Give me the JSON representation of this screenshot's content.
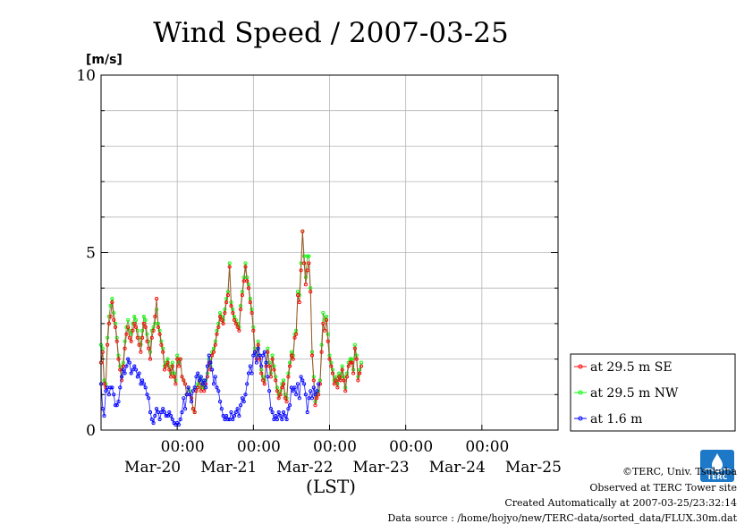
{
  "chart_data": {
    "type": "line",
    "title": "Wind Speed / 2007-03-25",
    "unit_label": "[m/s]",
    "xlabel": "(LST)",
    "ylim": [
      0,
      10
    ],
    "y_ticks": [
      "0",
      "5",
      "10"
    ],
    "time_ticks": [
      "00:00",
      "00:00",
      "00:00",
      "00:00",
      "00:00"
    ],
    "date_ticks": [
      "Mar-20",
      "Mar-21",
      "Mar-22",
      "Mar-23",
      "Mar-24",
      "Mar-25"
    ],
    "x_start": "2007-03-19T00:00",
    "x_end": "2007-03-25T00:00",
    "sample_interval": "30 min",
    "data_start": "2007-03-19T00:00",
    "legend_position": "right",
    "grid": true,
    "series": [
      {
        "name": "at 29.5 m SE",
        "color": "#ff0000",
        "line_color": "#a0522d",
        "values": [
          1.9,
          2.2,
          1.3,
          1.2,
          2.4,
          3.0,
          3.2,
          3.6,
          3.1,
          2.9,
          2.5,
          2.0,
          1.7,
          1.4,
          1.8,
          2.3,
          2.7,
          2.9,
          2.6,
          2.5,
          2.8,
          3.0,
          2.9,
          2.6,
          2.4,
          2.2,
          2.6,
          3.0,
          2.9,
          2.5,
          2.3,
          2.0,
          2.6,
          2.8,
          3.2,
          3.7,
          2.9,
          2.7,
          2.4,
          2.2,
          1.7,
          1.8,
          1.9,
          1.7,
          1.5,
          1.8,
          1.5,
          1.3,
          2.0,
          1.8,
          2.0,
          1.5,
          1.4,
          1.3,
          1.0,
          1.2,
          1.0,
          0.9,
          0.6,
          0.5,
          1.1,
          1.2,
          1.4,
          1.1,
          1.3,
          1.1,
          1.3,
          1.5,
          1.9,
          1.7,
          2.1,
          2.2,
          2.4,
          2.7,
          2.9,
          3.2,
          3.1,
          3.0,
          3.3,
          3.6,
          3.8,
          4.6,
          3.5,
          3.3,
          3.1,
          3.0,
          2.9,
          2.8,
          3.4,
          3.8,
          4.2,
          4.6,
          4.2,
          4.0,
          3.6,
          3.3,
          2.8,
          2.2,
          2.0,
          2.4,
          2.0,
          1.6,
          1.4,
          1.3,
          1.8,
          2.2,
          1.8,
          1.5,
          2.0,
          1.7,
          1.4,
          1.1,
          0.9,
          1.0,
          1.2,
          1.3,
          0.9,
          0.8,
          1.5,
          1.8,
          2.1,
          2.0,
          2.6,
          2.7,
          3.8,
          3.6,
          4.5,
          5.6,
          4.7,
          4.1,
          4.5,
          4.7,
          3.9,
          2.1,
          1.4,
          0.7,
          0.9,
          1.0,
          1.3,
          2.2,
          3.0,
          2.8,
          3.1,
          2.5,
          2.0,
          1.8,
          1.6,
          1.3,
          1.4,
          1.2,
          1.5,
          1.4,
          1.7,
          1.4,
          1.1,
          1.5,
          1.8,
          1.9,
          1.9,
          1.6,
          2.3,
          2.0,
          1.4,
          1.6,
          1.8
        ]
      },
      {
        "name": "at 29.5 m NW",
        "color": "#00ff00",
        "line_color": "#6a9e3a",
        "values": [
          2.4,
          2.3,
          1.4,
          1.3,
          2.6,
          3.2,
          3.5,
          3.7,
          3.3,
          3.0,
          2.6,
          2.1,
          1.8,
          1.5,
          1.9,
          2.5,
          2.9,
          3.1,
          2.8,
          2.7,
          3.0,
          3.2,
          3.1,
          2.8,
          2.6,
          2.4,
          2.8,
          3.2,
          3.1,
          2.7,
          2.5,
          2.2,
          2.8,
          2.9,
          3.0,
          3.4,
          3.0,
          2.8,
          2.5,
          2.3,
          1.8,
          1.9,
          2.0,
          1.8,
          1.6,
          1.9,
          1.6,
          1.4,
          2.1,
          1.9,
          2.0,
          1.5,
          1.4,
          1.3,
          1.0,
          1.2,
          1.1,
          0.9,
          0.6,
          0.5,
          1.2,
          1.3,
          1.5,
          1.2,
          1.4,
          1.2,
          1.4,
          1.6,
          2.0,
          1.8,
          2.2,
          2.3,
          2.5,
          2.8,
          3.0,
          3.3,
          3.2,
          3.1,
          3.4,
          3.7,
          3.9,
          4.7,
          3.6,
          3.4,
          3.2,
          3.1,
          3.0,
          2.9,
          3.5,
          3.9,
          4.3,
          4.7,
          4.3,
          4.1,
          3.7,
          3.4,
          2.9,
          2.3,
          2.1,
          2.5,
          2.1,
          1.7,
          1.5,
          1.4,
          1.9,
          2.3,
          1.9,
          1.6,
          2.1,
          1.8,
          1.5,
          1.2,
          1.0,
          1.1,
          1.3,
          1.4,
          1.0,
          0.9,
          1.6,
          1.9,
          2.2,
          2.1,
          2.7,
          2.8,
          3.9,
          3.8,
          4.7,
          5.6,
          4.9,
          4.3,
          4.9,
          4.9,
          4.0,
          2.2,
          1.5,
          0.8,
          1.0,
          1.1,
          1.4,
          2.4,
          3.3,
          3.1,
          3.2,
          2.7,
          2.1,
          1.9,
          1.7,
          1.4,
          1.5,
          1.3,
          1.6,
          1.5,
          1.8,
          1.5,
          1.2,
          1.6,
          1.9,
          2.0,
          2.0,
          1.7,
          2.4,
          2.1,
          1.5,
          1.7,
          1.9
        ]
      },
      {
        "name": "at 1.6 m",
        "color": "#0000ff",
        "line_color": "#3030ff",
        "values": [
          1.3,
          0.6,
          0.4,
          1.1,
          1.2,
          1.0,
          1.2,
          1.2,
          1.0,
          0.7,
          0.7,
          0.8,
          1.2,
          1.5,
          1.7,
          1.6,
          1.8,
          2.0,
          1.9,
          1.6,
          1.7,
          1.8,
          1.7,
          1.5,
          1.6,
          1.3,
          1.4,
          1.3,
          1.2,
          1.0,
          0.9,
          0.5,
          0.3,
          0.2,
          0.4,
          0.6,
          0.5,
          0.3,
          0.5,
          0.6,
          0.5,
          0.4,
          0.4,
          0.5,
          0.4,
          0.3,
          0.2,
          0.15,
          0.2,
          0.15,
          0.3,
          0.5,
          0.9,
          0.6,
          1.0,
          1.2,
          1.0,
          0.8,
          1.1,
          1.2,
          1.5,
          1.6,
          1.4,
          1.5,
          1.3,
          1.4,
          1.2,
          1.8,
          2.1,
          1.9,
          1.7,
          1.3,
          1.5,
          1.2,
          1.1,
          0.8,
          0.6,
          0.4,
          0.3,
          0.4,
          0.3,
          0.3,
          0.5,
          0.3,
          0.4,
          0.5,
          0.6,
          0.4,
          0.7,
          0.9,
          0.8,
          1.0,
          1.3,
          1.6,
          1.8,
          1.6,
          2.1,
          2.2,
          1.9,
          2.3,
          2.1,
          1.8,
          2.1,
          2.2,
          1.9,
          1.5,
          1.1,
          0.6,
          0.5,
          0.3,
          0.4,
          0.3,
          0.5,
          0.4,
          0.3,
          0.5,
          0.4,
          0.3,
          0.6,
          0.7,
          1.2,
          1.1,
          1.2,
          1.0,
          1.3,
          0.9,
          1.5,
          1.4,
          1.3,
          1.0,
          0.5,
          0.9,
          1.1,
          0.9,
          1.2,
          1.0,
          1.1,
          1.3
        ]
      }
    ]
  },
  "footer": {
    "copyright": "©TERC, Univ. Tsukuba",
    "observed": "Observed at TERC Tower site",
    "created": "Created Automatically at 2007-03-25/23:32:14",
    "source": "Data source : /home/hojyo/new/TERC-data/sorted_data/FLUX.30m.dat",
    "logo_text": "TERC",
    "logo_color": "#1e78c8"
  }
}
